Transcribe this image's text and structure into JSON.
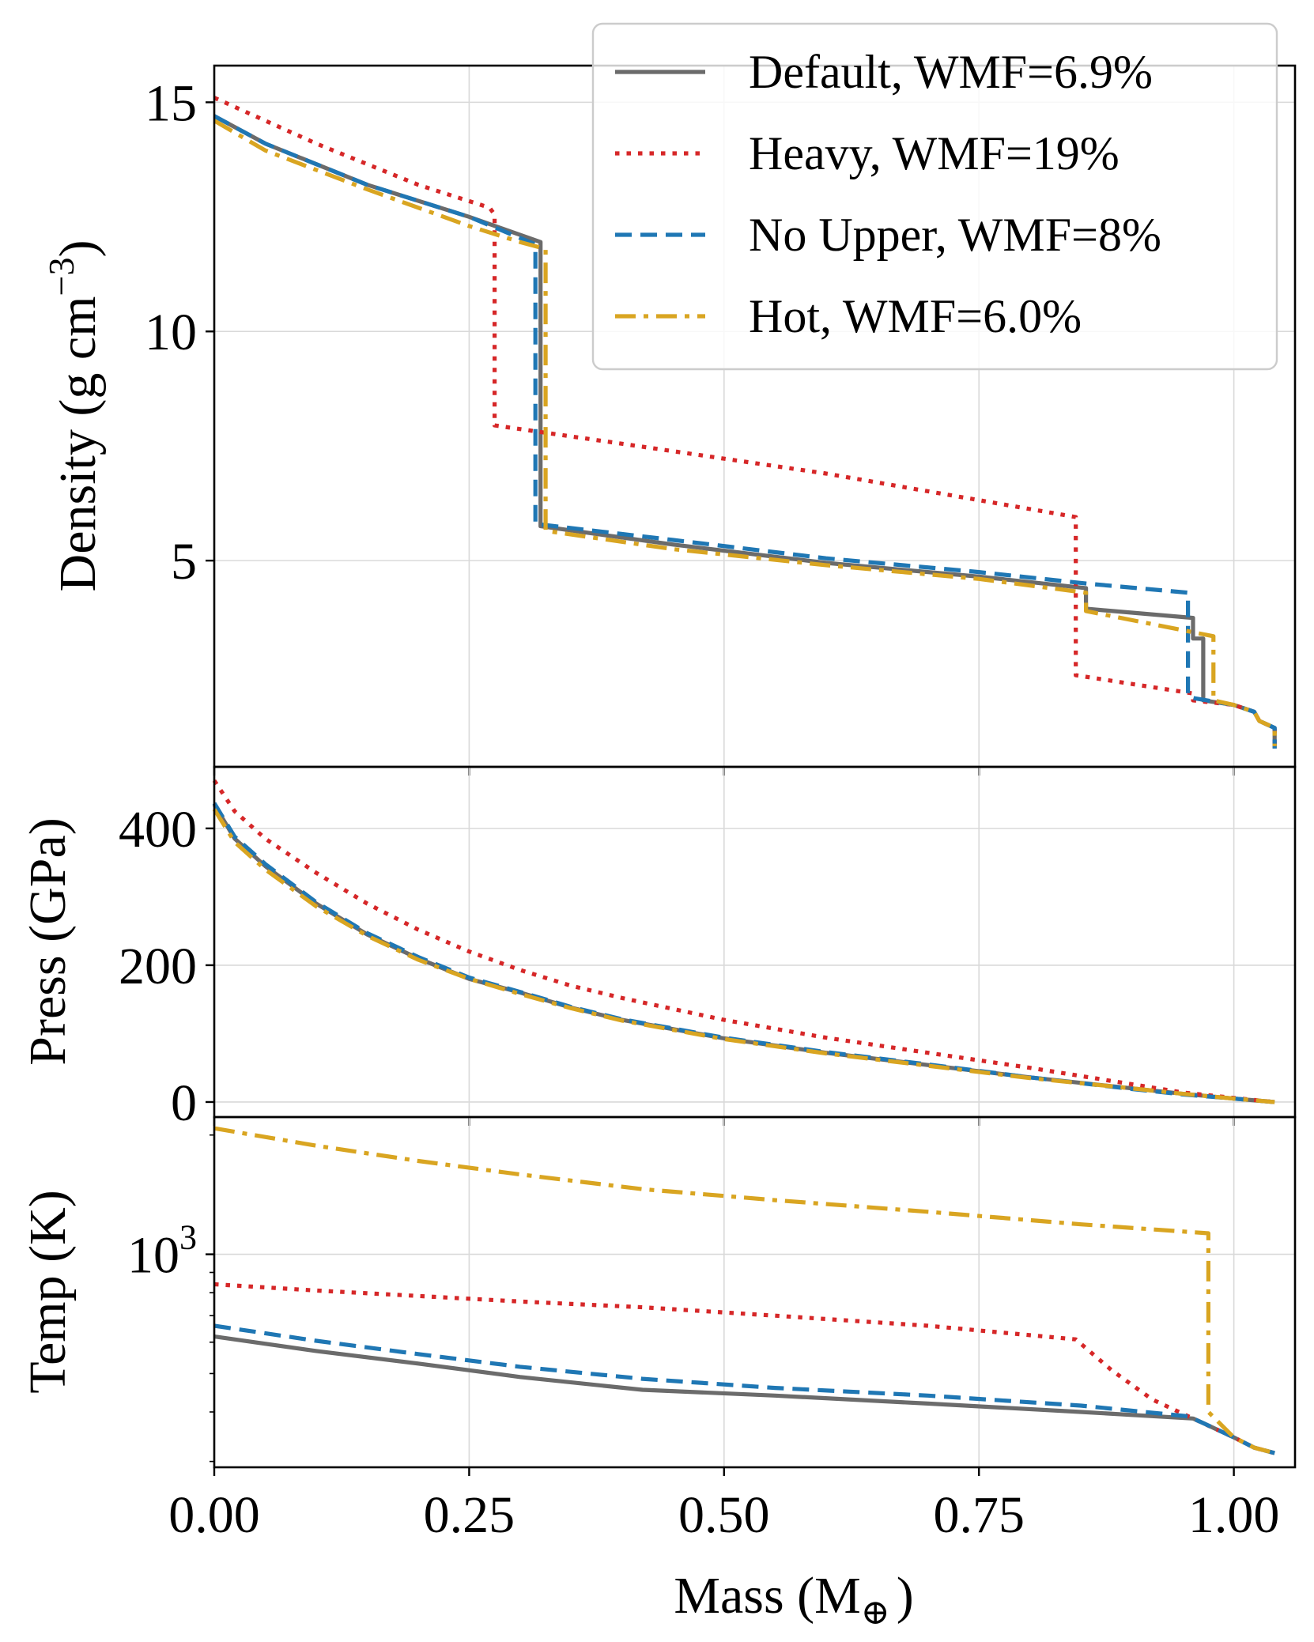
{
  "colors": {
    "default": "#6b6b6b",
    "heavy": "#d62728",
    "no_upper": "#1f77b4",
    "hot": "#d9a521"
  },
  "chart_data": {
    "type": "line",
    "layout": "3 stacked panels sharing x-axis",
    "xlabel": "Mass (M",
    "xlabel_symbol": "⊕",
    "xlabel_close": ")",
    "xlim": [
      0.0,
      1.06
    ],
    "xticks": [
      0.0,
      0.25,
      0.5,
      0.75,
      1.0
    ],
    "xtick_labels": [
      "0.00",
      "0.25",
      "0.50",
      "0.75",
      "1.00"
    ],
    "grid": true,
    "legend": {
      "location": "top-right",
      "entries": [
        {
          "key": "default",
          "label": "Default, WMF=6.9%",
          "style": "solid"
        },
        {
          "key": "heavy",
          "label": "Heavy, WMF=19%",
          "style": "dotted"
        },
        {
          "key": "no_upper",
          "label": "No Upper, WMF=8%",
          "style": "dashed"
        },
        {
          "key": "hot",
          "label": "Hot, WMF=6.0%",
          "style": "dashdot"
        }
      ]
    },
    "panels": [
      {
        "id": "density",
        "ylabel": "Density (g cm",
        "ylabel_sup": "−3",
        "ylabel_close": ")",
        "yscale": "linear",
        "ylim": [
          0.5,
          15.8
        ],
        "yticks": [
          5,
          10,
          15
        ],
        "ytick_labels": [
          "5",
          "10",
          "15"
        ],
        "series": [
          {
            "key": "default",
            "points": [
              [
                0.0,
                14.7
              ],
              [
                0.05,
                14.1
              ],
              [
                0.15,
                13.2
              ],
              [
                0.25,
                12.5
              ],
              [
                0.32,
                11.95
              ],
              [
                0.32,
                5.75
              ],
              [
                0.45,
                5.35
              ],
              [
                0.6,
                4.95
              ],
              [
                0.75,
                4.65
              ],
              [
                0.855,
                4.4
              ],
              [
                0.855,
                3.95
              ],
              [
                0.96,
                3.75
              ],
              [
                0.96,
                3.3
              ],
              [
                0.97,
                3.3
              ],
              [
                0.97,
                1.95
              ],
              [
                1.0,
                1.85
              ],
              [
                1.02,
                1.7
              ],
              [
                1.025,
                1.5
              ],
              [
                1.04,
                1.35
              ],
              [
                1.04,
                0.9
              ]
            ]
          },
          {
            "key": "heavy",
            "points": [
              [
                0.0,
                15.1
              ],
              [
                0.1,
                14.1
              ],
              [
                0.2,
                13.2
              ],
              [
                0.27,
                12.7
              ],
              [
                0.275,
                12.55
              ],
              [
                0.275,
                7.95
              ],
              [
                0.4,
                7.55
              ],
              [
                0.6,
                6.9
              ],
              [
                0.845,
                5.95
              ],
              [
                0.845,
                2.5
              ],
              [
                0.96,
                2.1
              ],
              [
                0.96,
                1.95
              ],
              [
                1.0,
                1.85
              ],
              [
                1.02,
                1.7
              ],
              [
                1.025,
                1.5
              ],
              [
                1.04,
                1.35
              ],
              [
                1.04,
                0.9
              ]
            ]
          },
          {
            "key": "no_upper",
            "points": [
              [
                0.0,
                14.7
              ],
              [
                0.05,
                14.1
              ],
              [
                0.15,
                13.2
              ],
              [
                0.25,
                12.5
              ],
              [
                0.315,
                11.9
              ],
              [
                0.315,
                5.8
              ],
              [
                0.45,
                5.45
              ],
              [
                0.6,
                5.05
              ],
              [
                0.75,
                4.75
              ],
              [
                0.855,
                4.5
              ],
              [
                0.955,
                4.3
              ],
              [
                0.955,
                2.05
              ],
              [
                0.96,
                2.0
              ],
              [
                1.0,
                1.85
              ],
              [
                1.02,
                1.7
              ],
              [
                1.025,
                1.5
              ],
              [
                1.04,
                1.35
              ],
              [
                1.04,
                0.9
              ]
            ]
          },
          {
            "key": "hot",
            "points": [
              [
                0.0,
                14.6
              ],
              [
                0.05,
                13.95
              ],
              [
                0.15,
                13.1
              ],
              [
                0.25,
                12.3
              ],
              [
                0.3,
                11.95
              ],
              [
                0.325,
                11.8
              ],
              [
                0.325,
                5.65
              ],
              [
                0.45,
                5.25
              ],
              [
                0.6,
                4.9
              ],
              [
                0.75,
                4.6
              ],
              [
                0.855,
                4.3
              ],
              [
                0.855,
                3.9
              ],
              [
                0.98,
                3.35
              ],
              [
                0.98,
                1.95
              ],
              [
                1.0,
                1.85
              ],
              [
                1.02,
                1.7
              ],
              [
                1.025,
                1.5
              ],
              [
                1.04,
                1.35
              ],
              [
                1.04,
                0.95
              ]
            ]
          }
        ]
      },
      {
        "id": "pressure",
        "ylabel": "Press (GPa)",
        "yscale": "linear",
        "ylim": [
          -22,
          490
        ],
        "yticks": [
          0,
          200,
          400
        ],
        "ytick_labels": [
          "0",
          "200",
          "400"
        ],
        "series": [
          {
            "key": "default",
            "points": [
              [
                0.0,
                435
              ],
              [
                0.02,
                385
              ],
              [
                0.05,
                345
              ],
              [
                0.1,
                290
              ],
              [
                0.15,
                245
              ],
              [
                0.2,
                210
              ],
              [
                0.25,
                180
              ],
              [
                0.3,
                160
              ],
              [
                0.35,
                138
              ],
              [
                0.4,
                120
              ],
              [
                0.5,
                93
              ],
              [
                0.6,
                72
              ],
              [
                0.7,
                54
              ],
              [
                0.8,
                36
              ],
              [
                0.9,
                20
              ],
              [
                0.95,
                12
              ],
              [
                1.0,
                5
              ],
              [
                1.04,
                0
              ]
            ]
          },
          {
            "key": "heavy",
            "points": [
              [
                0.0,
                470
              ],
              [
                0.02,
                425
              ],
              [
                0.05,
                385
              ],
              [
                0.1,
                335
              ],
              [
                0.15,
                290
              ],
              [
                0.2,
                252
              ],
              [
                0.25,
                220
              ],
              [
                0.3,
                193
              ],
              [
                0.35,
                170
              ],
              [
                0.4,
                152
              ],
              [
                0.5,
                120
              ],
              [
                0.6,
                94
              ],
              [
                0.7,
                72
              ],
              [
                0.8,
                50
              ],
              [
                0.9,
                26
              ],
              [
                0.95,
                14
              ],
              [
                1.0,
                6
              ],
              [
                1.04,
                0
              ]
            ]
          },
          {
            "key": "no_upper",
            "points": [
              [
                0.0,
                437
              ],
              [
                0.02,
                388
              ],
              [
                0.05,
                348
              ],
              [
                0.1,
                292
              ],
              [
                0.15,
                247
              ],
              [
                0.2,
                212
              ],
              [
                0.25,
                182
              ],
              [
                0.3,
                161
              ],
              [
                0.35,
                139
              ],
              [
                0.4,
                121
              ],
              [
                0.5,
                94
              ],
              [
                0.6,
                73
              ],
              [
                0.7,
                55
              ],
              [
                0.8,
                36
              ],
              [
                0.9,
                19
              ],
              [
                0.95,
                11
              ],
              [
                1.0,
                5
              ],
              [
                1.04,
                0
              ]
            ]
          },
          {
            "key": "hot",
            "points": [
              [
                0.0,
                428
              ],
              [
                0.02,
                380
              ],
              [
                0.05,
                340
              ],
              [
                0.1,
                286
              ],
              [
                0.15,
                243
              ],
              [
                0.2,
                208
              ],
              [
                0.25,
                180
              ],
              [
                0.3,
                158
              ],
              [
                0.35,
                137
              ],
              [
                0.4,
                119
              ],
              [
                0.5,
                92
              ],
              [
                0.6,
                71
              ],
              [
                0.7,
                53
              ],
              [
                0.8,
                35
              ],
              [
                0.9,
                20
              ],
              [
                0.95,
                12
              ],
              [
                1.0,
                5
              ],
              [
                1.04,
                0
              ]
            ]
          }
        ]
      },
      {
        "id": "temperature",
        "ylabel": "Temp (K)",
        "yscale": "log",
        "ylim": [
          290,
          2220
        ],
        "yticks": [
          1000
        ],
        "ytick_base": "10",
        "ytick_exp": "3",
        "minor_yticks": [
          300,
          400,
          500,
          600,
          700,
          800,
          900,
          2000
        ],
        "series": [
          {
            "key": "default",
            "points": [
              [
                0.0,
                620
              ],
              [
                0.1,
                570
              ],
              [
                0.2,
                530
              ],
              [
                0.3,
                490
              ],
              [
                0.42,
                455
              ],
              [
                0.55,
                440
              ],
              [
                0.7,
                420
              ],
              [
                0.85,
                400
              ],
              [
                0.96,
                385
              ],
              [
                0.97,
                375
              ],
              [
                1.0,
                345
              ],
              [
                1.02,
                325
              ],
              [
                1.04,
                315
              ]
            ]
          },
          {
            "key": "heavy",
            "points": [
              [
                0.0,
                840
              ],
              [
                0.1,
                810
              ],
              [
                0.2,
                785
              ],
              [
                0.3,
                760
              ],
              [
                0.42,
                735
              ],
              [
                0.55,
                700
              ],
              [
                0.7,
                660
              ],
              [
                0.845,
                610
              ],
              [
                0.88,
                510
              ],
              [
                0.92,
                430
              ],
              [
                0.96,
                385
              ],
              [
                1.0,
                345
              ],
              [
                1.02,
                325
              ],
              [
                1.04,
                315
              ]
            ]
          },
          {
            "key": "no_upper",
            "points": [
              [
                0.0,
                660
              ],
              [
                0.1,
                605
              ],
              [
                0.2,
                560
              ],
              [
                0.3,
                520
              ],
              [
                0.42,
                485
              ],
              [
                0.55,
                460
              ],
              [
                0.7,
                440
              ],
              [
                0.85,
                415
              ],
              [
                0.955,
                390
              ],
              [
                0.97,
                375
              ],
              [
                1.0,
                345
              ],
              [
                1.02,
                325
              ],
              [
                1.04,
                315
              ]
            ]
          },
          {
            "key": "hot",
            "points": [
              [
                0.0,
                2080
              ],
              [
                0.1,
                1880
              ],
              [
                0.2,
                1720
              ],
              [
                0.3,
                1590
              ],
              [
                0.42,
                1460
              ],
              [
                0.55,
                1370
              ],
              [
                0.7,
                1280
              ],
              [
                0.85,
                1190
              ],
              [
                0.975,
                1130
              ],
              [
                0.975,
                400
              ],
              [
                1.0,
                345
              ],
              [
                1.02,
                325
              ],
              [
                1.04,
                315
              ]
            ]
          }
        ]
      }
    ]
  }
}
